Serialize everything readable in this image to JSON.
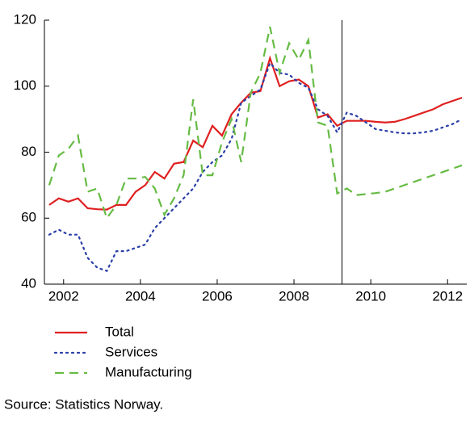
{
  "chart_data": {
    "type": "line",
    "x": [
      2001.625,
      2001.875,
      2002.125,
      2002.375,
      2002.625,
      2002.875,
      2003.125,
      2003.375,
      2003.625,
      2003.875,
      2004.125,
      2004.375,
      2004.625,
      2004.875,
      2005.125,
      2005.375,
      2005.625,
      2005.875,
      2006.125,
      2006.375,
      2006.625,
      2006.875,
      2007.125,
      2007.375,
      2007.625,
      2007.875,
      2008.125,
      2008.375,
      2008.625,
      2008.875,
      2009.125,
      2009.375,
      2009.625,
      2009.875,
      2010.125,
      2010.375,
      2010.625,
      2010.875,
      2011.125,
      2011.375,
      2011.625,
      2011.875,
      2012.125,
      2012.375
    ],
    "series": [
      {
        "name": "Total",
        "color": "#e02020",
        "style": "solid",
        "values": [
          64,
          66,
          65,
          66,
          63,
          62.7,
          62.6,
          64,
          64,
          68,
          70,
          74,
          72,
          76.5,
          77,
          83.5,
          81.5,
          88,
          85,
          91.5,
          95,
          98,
          98.5,
          108.5,
          100,
          101.5,
          102,
          100,
          90.5,
          91.5,
          88,
          89.5,
          89.5,
          89.5,
          89.2,
          89,
          89.2,
          90,
          91,
          92,
          93,
          94.5,
          95.5,
          96.5
        ]
      },
      {
        "name": "Services",
        "color": "#2a3ea8",
        "style": "dotted",
        "values": [
          55,
          56.5,
          55,
          55,
          48,
          45,
          44,
          50,
          50,
          51,
          52,
          57,
          60,
          63,
          66,
          69,
          74,
          77,
          79,
          84,
          95,
          97,
          99,
          107,
          104,
          103.5,
          101,
          99.5,
          93,
          91,
          86,
          92,
          91,
          89,
          87,
          86.5,
          86,
          85.7,
          85.7,
          86,
          86.5,
          87.5,
          88.5,
          90
        ]
      },
      {
        "name": "Manufacturing",
        "color": "#66bb44",
        "style": "dashed",
        "values": [
          70,
          79,
          81,
          85,
          68,
          69,
          60,
          64,
          72,
          72,
          72.5,
          69,
          61,
          66,
          73,
          96,
          73,
          73,
          83,
          90,
          77,
          98,
          104,
          118,
          104,
          113,
          108,
          114,
          89,
          88,
          67.5,
          69,
          67,
          67.3,
          67.6,
          68,
          69,
          70,
          71,
          72,
          73,
          74,
          75,
          76
        ]
      }
    ],
    "xlim": [
      2001.5,
      2012.5
    ],
    "xticks": [
      2002,
      2004,
      2006,
      2008,
      2010,
      2012
    ],
    "ylim": [
      40,
      120
    ],
    "yticks": [
      40,
      60,
      80,
      100,
      120
    ],
    "vline_x": 2009.25,
    "source": "Source:  Statistics Norway."
  }
}
